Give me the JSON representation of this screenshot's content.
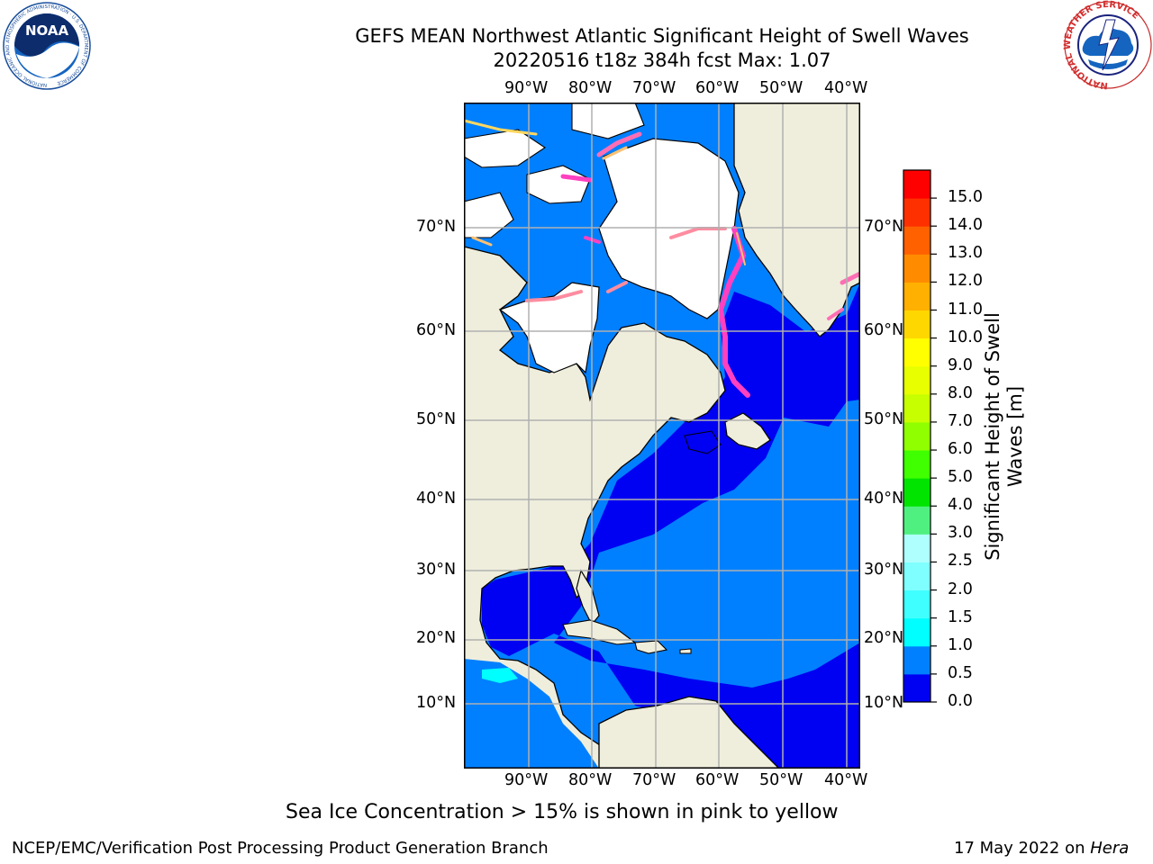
{
  "title_line1": "GEFS MEAN Northwest Atlantic Significant Height of Swell Waves",
  "title_line2": "20220516 t18z 384h fcst   Max: 1.07",
  "lon_labels": [
    "90°W",
    "80°W",
    "70°W",
    "60°W",
    "50°W",
    "40°W"
  ],
  "lat_labels": [
    "70°N",
    "60°N",
    "50°N",
    "40°N",
    "30°N",
    "20°N",
    "10°N"
  ],
  "colorbar": {
    "title": "Significant Height of Swell Waves [m]",
    "ticks": [
      "0.0",
      "0.5",
      "1.0",
      "1.5",
      "2.0",
      "2.5",
      "3.0",
      "4.0",
      "5.0",
      "6.0",
      "7.0",
      "8.0",
      "9.0",
      "10.0",
      "11.0",
      "12.0",
      "13.0",
      "14.0",
      "15.0"
    ],
    "colors": [
      "#0000f2",
      "#0080ff",
      "#00ffff",
      "#40ffff",
      "#7fffff",
      "#afffff",
      "#50f080",
      "#00e400",
      "#40ff00",
      "#90ff00",
      "#c8ff00",
      "#e8ff00",
      "#ffff00",
      "#ffd700",
      "#ffb000",
      "#ff8c00",
      "#ff6000",
      "#ff3000",
      "#ff0000"
    ]
  },
  "colors": {
    "land": "#efeedd",
    "ice_free_land": "#ffffff",
    "low_swell": "#0000f2",
    "swell_05_10": "#0080ff",
    "grid": "#b0b0b0"
  },
  "caption": "Sea Ice Concentration > 15% is shown in pink to yellow",
  "footer_left": "NCEP/EMC/Verification Post Processing Product Generation Branch",
  "footer_right_date": "17 May 2022 on ",
  "footer_right_host": "Hera",
  "logos": {
    "noaa": "NOAA",
    "noaa_ring": "NATIONAL OCEANIC AND ATMOSPHERIC ADMINISTRATION · U.S. DEPARTMENT OF COMMERCE",
    "nws_ring": "NATIONAL WEATHER SERVICE"
  }
}
